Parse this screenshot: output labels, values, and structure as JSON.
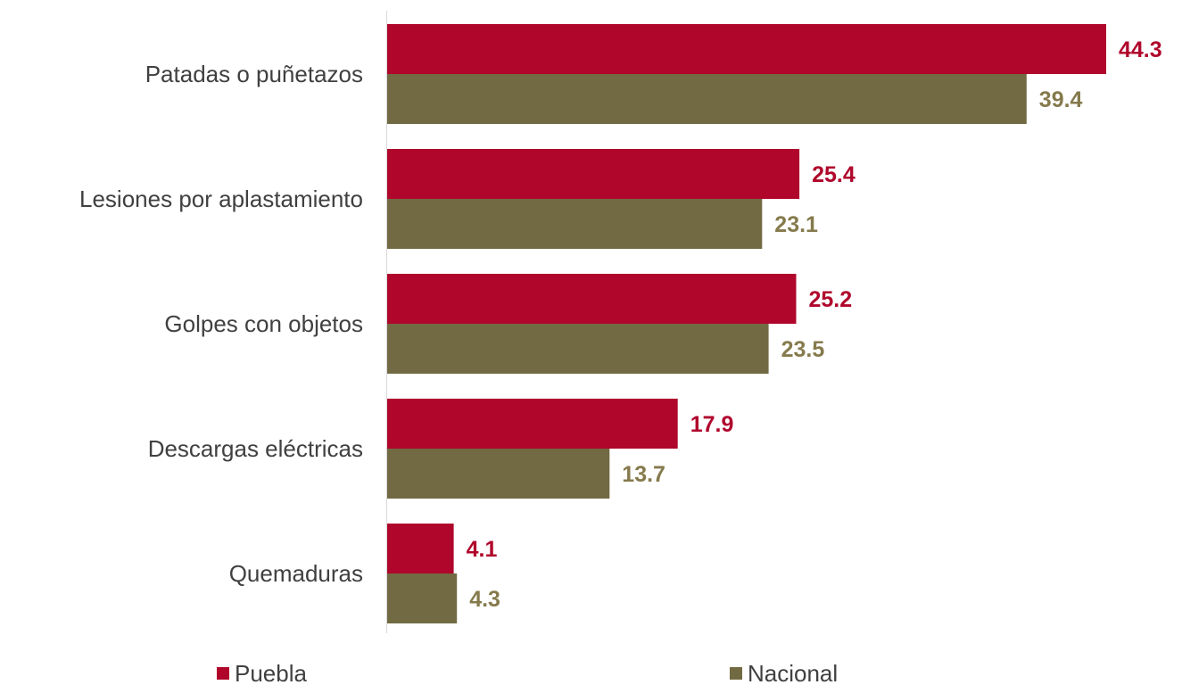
{
  "chart_data": {
    "type": "bar",
    "orientation": "horizontal",
    "title": "",
    "xlabel": "",
    "ylabel": "",
    "categories": [
      "Patadas o puñetazos",
      "Lesiones por aplastamiento",
      "Golpes con objetos",
      "Descargas eléctricas",
      "Quemaduras"
    ],
    "series": [
      {
        "name": "Puebla",
        "color": "#B0062C",
        "label_color": "#B0062C",
        "values": [
          44.3,
          25.4,
          25.2,
          17.9,
          4.1
        ],
        "labels": [
          "44.3",
          "25.4",
          "25.2",
          "17.9",
          "4.1"
        ]
      },
      {
        "name": "Nacional",
        "color": "#726A43",
        "label_color": "#857A4C",
        "values": [
          39.4,
          23.1,
          23.5,
          13.7,
          4.3
        ],
        "labels": [
          "39.4",
          "23.1",
          "23.5",
          "13.7",
          "4.3"
        ]
      }
    ],
    "xlim": [
      0,
      44.3
    ],
    "grid": false,
    "axis_line": true,
    "legend_position": "bottom"
  }
}
